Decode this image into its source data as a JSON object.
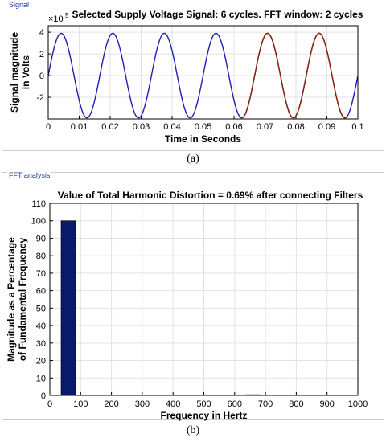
{
  "panels": {
    "signal_tab": "Signal",
    "fft_tab": "FFT analysis"
  },
  "captions": {
    "a": "(a)",
    "b": "(b)"
  },
  "colors": {
    "signal_line": "#1f1fb4",
    "fft_window_line": "#8b2500",
    "bar_fill": "#0a1a6b"
  },
  "chart_data": [
    {
      "type": "line",
      "title": "Selected Supply Voltage Signal: 6 cycles. FFT window: 2 cycles",
      "xlabel": "Time in Seconds",
      "ylabel_line1": "Signal magnitude",
      "ylabel_line2": "in Volts",
      "y_exponent_label": "×10",
      "y_exponent_power": "5",
      "xlim": [
        0,
        0.1
      ],
      "ylim": [
        -4,
        4.6
      ],
      "x_ticks": [
        "0",
        "0.01",
        "0.02",
        "0.03",
        "0.04",
        "0.05",
        "0.06",
        "0.07",
        "0.08",
        "0.09",
        "0.1"
      ],
      "y_ticks": [
        "-2",
        "0",
        "2",
        "4"
      ],
      "y_tick_values": [
        -2,
        0,
        2,
        4
      ],
      "grid": true,
      "series": [
        {
          "amplitude": 3.9,
          "frequency_hz": 60,
          "x_start": 0,
          "x_end": 0.1,
          "fft_window": [
            0.0633,
            0.0967
          ]
        }
      ]
    },
    {
      "type": "bar",
      "title": "Value of Total Harmonic Distortion = 0.69% after connecting Filters",
      "xlabel": "Frequency in Hertz",
      "ylabel_line1": "Magnitude as a Percentage",
      "ylabel_line2": "of Fundamental Frequency",
      "xlim": [
        0,
        1000
      ],
      "ylim": [
        0,
        110
      ],
      "x_ticks": [
        "0",
        "100",
        "200",
        "300",
        "400",
        "500",
        "600",
        "700",
        "800",
        "900",
        "1000"
      ],
      "y_ticks": [
        "0",
        "10",
        "20",
        "30",
        "40",
        "50",
        "60",
        "70",
        "80",
        "90",
        "100",
        "110"
      ],
      "grid": true,
      "bars": [
        {
          "x": 60,
          "value": 100
        },
        {
          "x": 660,
          "value": 0.4
        }
      ]
    }
  ]
}
